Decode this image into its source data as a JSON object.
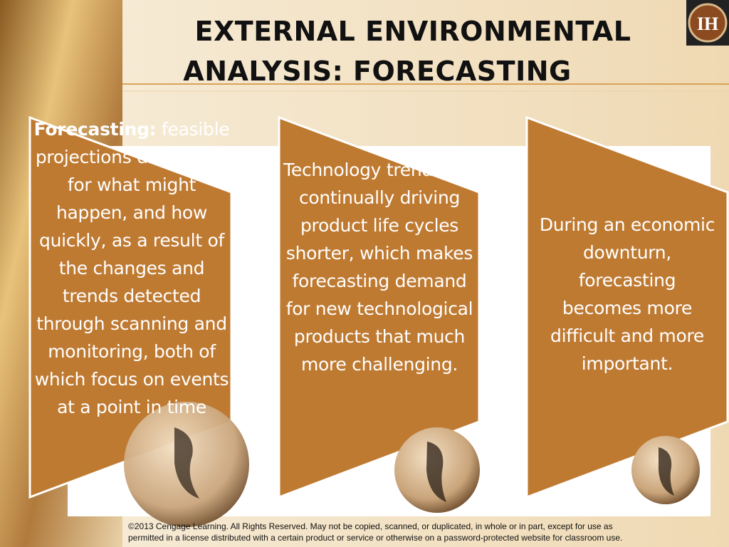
{
  "title": {
    "line1": "EXTERNAL ENVIRONMENTAL",
    "line2": "ANALYSIS: FORECASTING"
  },
  "panels": [
    {
      "heading": "Forecasting:",
      "text": "feasible projections developed for what might happen, and how quickly, as a result of the changes and trends detected through scanning and monitoring, both of which focus on events at a point in time"
    },
    {
      "text": "Technology trends are continually driving product life cycles shorter, which makes forecasting demand for new technological products that much more challenging."
    },
    {
      "text": "During an economic downturn, forecasting becomes more difficult and more important."
    }
  ],
  "footer": {
    "line1": "©2013 Cengage Learning.  All Rights Reserved.  May not be copied, scanned, or duplicated, in whole or in part, except for use as",
    "line2": "permitted in a license distributed with a certain product or service or otherwise on a password-protected website for classroom use."
  }
}
